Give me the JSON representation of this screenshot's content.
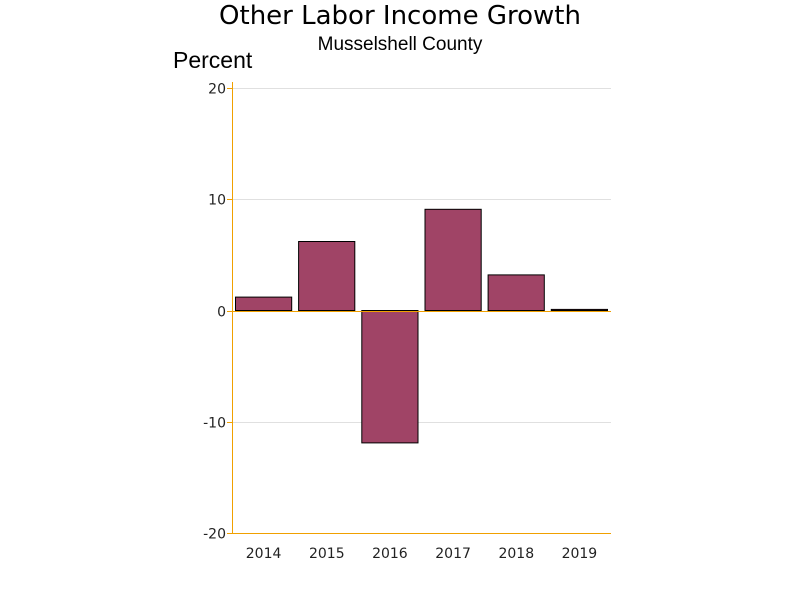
{
  "chart_data": {
    "type": "bar",
    "title": "Other Labor Income Growth",
    "subtitle": "Musselshell County",
    "ylabel": "Percent",
    "xlabel": "",
    "categories": [
      "2014",
      "2015",
      "2016",
      "2017",
      "2018",
      "2019"
    ],
    "values": [
      1.2,
      6.2,
      -11.9,
      9.1,
      3.2,
      0.1
    ],
    "ylim": [
      -20,
      20
    ],
    "yticks": [
      20,
      10,
      0,
      -10,
      -20
    ],
    "grid": true,
    "legend": "none",
    "colors": {
      "bar_fill": "#a04466",
      "bar_stroke": "#000000",
      "axis": "#f0a000",
      "grid": "#e0e0e0"
    }
  }
}
